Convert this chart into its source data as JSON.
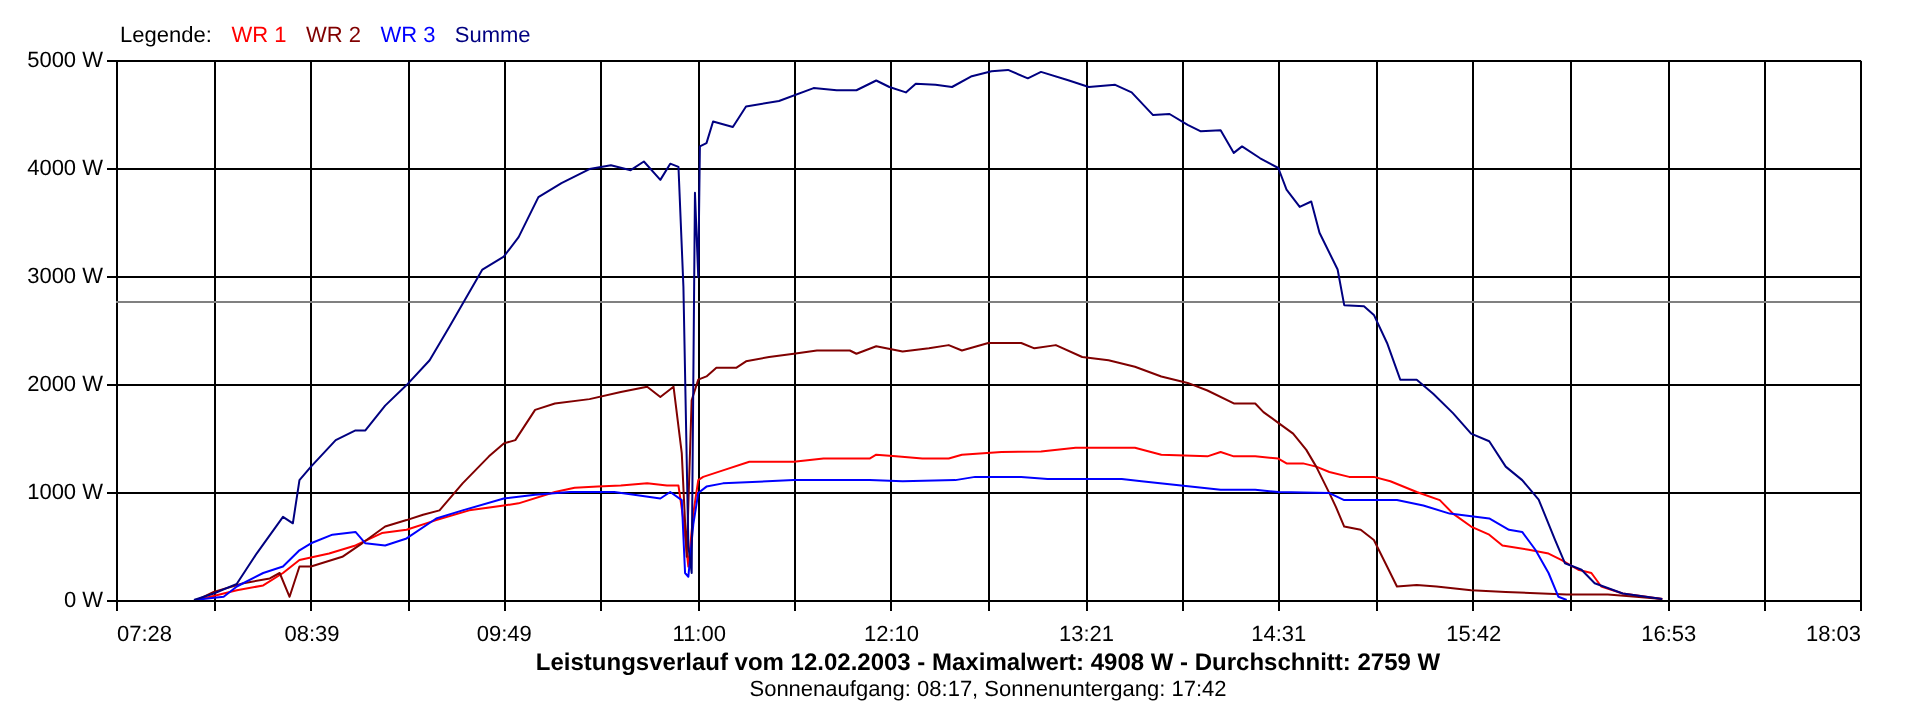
{
  "chart_data": {
    "type": "line",
    "title": "Leistungsverlauf vom 12.02.2003 - Maximalwert: 4908 W - Durchschnitt: 2759 W",
    "subtitle": "Sonnenaufgang: 08:17, Sonnenuntergang: 17:42",
    "legend_title": "Legende:",
    "legend": "top left",
    "grid": true,
    "xlim": [
      7.4667,
      18.05
    ],
    "xticks": [
      {
        "value": 7.4667,
        "label": "07:28"
      },
      {
        "value": 8.0583,
        "label": null
      },
      {
        "value": 8.65,
        "label": "08:39"
      },
      {
        "value": 9.2333,
        "label": null
      },
      {
        "value": 9.8167,
        "label": "09:49"
      },
      {
        "value": 10.4083,
        "label": null
      },
      {
        "value": 11.0,
        "label": "11:00"
      },
      {
        "value": 11.5833,
        "label": null
      },
      {
        "value": 12.1667,
        "label": "12:10"
      },
      {
        "value": 12.7583,
        "label": null
      },
      {
        "value": 13.35,
        "label": "13:21"
      },
      {
        "value": 13.9333,
        "label": null
      },
      {
        "value": 14.5167,
        "label": "14:31"
      },
      {
        "value": 15.1083,
        "label": null
      },
      {
        "value": 15.7,
        "label": "15:42"
      },
      {
        "value": 16.2917,
        "label": null
      },
      {
        "value": 16.8833,
        "label": "16:53"
      },
      {
        "value": 17.4667,
        "label": null
      },
      {
        "value": 18.05,
        "label": "18:03"
      }
    ],
    "ylim": [
      0,
      5000
    ],
    "yticks": [
      {
        "value": 0,
        "label": "0 W"
      },
      {
        "value": 1000,
        "label": "1000 W"
      },
      {
        "value": 2000,
        "label": "2000 W"
      },
      {
        "value": 3000,
        "label": "3000 W"
      },
      {
        "value": 4000,
        "label": "4000 W"
      },
      {
        "value": 5000,
        "label": "5000 W"
      }
    ],
    "ref_lines": [
      {
        "axis": "y",
        "value": 2759,
        "color": "#808080"
      }
    ],
    "series": [
      {
        "name": "WR 1",
        "color": "#ff0000",
        "x": [
          7.96,
          8.2,
          8.36,
          8.48,
          8.58,
          8.76,
          8.92,
          9.08,
          9.23,
          9.41,
          9.61,
          9.82,
          9.91,
          10.13,
          10.25,
          10.39,
          10.53,
          10.69,
          10.81,
          10.88,
          10.91,
          10.94,
          10.97,
          11.0,
          11.03,
          11.15,
          11.31,
          11.58,
          11.76,
          12.04,
          12.08,
          12.2,
          12.36,
          12.52,
          12.6,
          12.84,
          13.08,
          13.29,
          13.65,
          13.81,
          14.09,
          14.17,
          14.25,
          14.38,
          14.52,
          14.57,
          14.67,
          14.75,
          14.83,
          14.95,
          15.1,
          15.2,
          15.36,
          15.5,
          15.58,
          15.69,
          15.8,
          15.88,
          16.04,
          16.16,
          16.24,
          16.34,
          16.42,
          16.48,
          16.61,
          16.85
        ],
        "values": [
          0,
          90,
          135,
          250,
          370,
          430,
          505,
          620,
          650,
          740,
          830,
          875,
          895,
          1000,
          1040,
          1050,
          1060,
          1080,
          1060,
          1060,
          740,
          310,
          800,
          1110,
          1140,
          1200,
          1280,
          1280,
          1310,
          1310,
          1345,
          1330,
          1310,
          1310,
          1345,
          1370,
          1375,
          1410,
          1410,
          1345,
          1330,
          1370,
          1330,
          1330,
          1310,
          1265,
          1265,
          1235,
          1185,
          1140,
          1140,
          1100,
          1000,
          925,
          800,
          680,
          605,
          505,
          465,
          430,
          370,
          280,
          250,
          125,
          60,
          10
        ]
      },
      {
        "name": "WR 2",
        "color": "#800000",
        "x": [
          7.96,
          8.06,
          8.24,
          8.4,
          8.46,
          8.52,
          8.58,
          8.65,
          8.84,
          8.96,
          9.1,
          9.23,
          9.33,
          9.43,
          9.57,
          9.73,
          9.82,
          9.89,
          10.01,
          10.13,
          10.34,
          10.53,
          10.69,
          10.77,
          10.85,
          10.9,
          10.93,
          10.96,
          11.0,
          11.05,
          11.11,
          11.23,
          11.29,
          11.43,
          11.58,
          11.72,
          11.92,
          11.96,
          12.08,
          12.24,
          12.4,
          12.52,
          12.6,
          12.76,
          12.96,
          13.04,
          13.17,
          13.33,
          13.49,
          13.65,
          13.81,
          13.97,
          14.09,
          14.25,
          14.38,
          14.43,
          14.52,
          14.61,
          14.69,
          14.75,
          14.83,
          14.87,
          14.92,
          15.02,
          15.1,
          15.18,
          15.24,
          15.36,
          15.48,
          15.69,
          15.9,
          16.27,
          16.52,
          16.69,
          16.85
        ],
        "values": [
          0,
          75,
          155,
          200,
          250,
          30,
          310,
          310,
          400,
          525,
          680,
          740,
          790,
          830,
          1080,
          1330,
          1450,
          1480,
          1760,
          1820,
          1860,
          1925,
          1975,
          1880,
          1975,
          1360,
          400,
          1850,
          2040,
          2070,
          2150,
          2150,
          2210,
          2250,
          2280,
          2310,
          2310,
          2280,
          2350,
          2300,
          2330,
          2360,
          2310,
          2380,
          2380,
          2330,
          2360,
          2250,
          2220,
          2160,
          2070,
          2010,
          1940,
          1820,
          1820,
          1740,
          1640,
          1540,
          1390,
          1235,
          990,
          860,
          680,
          650,
          555,
          310,
          125,
          140,
          125,
          90,
          75,
          50,
          50,
          30,
          10
        ]
      },
      {
        "name": "WR 3",
        "color": "#0000ff",
        "x": [
          7.94,
          8.12,
          8.2,
          8.36,
          8.48,
          8.58,
          8.65,
          8.78,
          8.92,
          8.98,
          9.1,
          9.23,
          9.41,
          9.57,
          9.82,
          10.01,
          10.22,
          10.49,
          10.61,
          10.77,
          10.83,
          10.9,
          10.92,
          10.94,
          10.97,
          11.0,
          11.05,
          11.15,
          11.58,
          12.04,
          12.24,
          12.56,
          12.68,
          12.96,
          13.12,
          13.57,
          13.69,
          13.93,
          14.17,
          14.38,
          14.52,
          14.83,
          14.92,
          15.24,
          15.4,
          15.56,
          15.8,
          15.92,
          16.0,
          16.08,
          16.16,
          16.22,
          16.27
        ],
        "values": [
          0,
          30,
          125,
          250,
          310,
          460,
          525,
          605,
          630,
          525,
          505,
          570,
          755,
          830,
          940,
          975,
          1000,
          1000,
          975,
          940,
          1000,
          925,
          250,
          215,
          700,
          990,
          1050,
          1080,
          1110,
          1110,
          1100,
          1110,
          1140,
          1140,
          1120,
          1120,
          1100,
          1060,
          1020,
          1020,
          1000,
          990,
          925,
          925,
          875,
          800,
          755,
          650,
          630,
          465,
          250,
          30,
          0
        ]
      },
      {
        "name": "Summe",
        "color": "#000080",
        "x": [
          7.94,
          8.06,
          8.2,
          8.32,
          8.48,
          8.54,
          8.58,
          8.65,
          8.8,
          8.92,
          8.98,
          9.1,
          9.23,
          9.37,
          9.49,
          9.69,
          9.82,
          9.91,
          10.03,
          10.17,
          10.34,
          10.47,
          10.59,
          10.67,
          10.77,
          10.83,
          10.88,
          10.91,
          10.94,
          10.96,
          10.98,
          11.0,
          11.01,
          11.05,
          11.09,
          11.21,
          11.29,
          11.49,
          11.7,
          11.84,
          11.96,
          12.08,
          12.16,
          12.26,
          12.32,
          12.44,
          12.54,
          12.66,
          12.78,
          12.88,
          13.0,
          13.08,
          13.25,
          13.37,
          13.53,
          13.63,
          13.76,
          13.86,
          13.97,
          14.05,
          14.17,
          14.25,
          14.3,
          14.41,
          14.52,
          14.57,
          14.65,
          14.72,
          14.77,
          14.88,
          14.92,
          15.04,
          15.1,
          15.18,
          15.26,
          15.36,
          15.46,
          15.58,
          15.69,
          15.8,
          15.9,
          16.0,
          16.1,
          16.2,
          16.26,
          16.36,
          16.44,
          16.61,
          16.85
        ],
        "values": [
          0,
          60,
          150,
          430,
          770,
          710,
          1110,
          1235,
          1480,
          1570,
          1570,
          1800,
          1990,
          2220,
          2530,
          3060,
          3180,
          3360,
          3730,
          3860,
          3990,
          4025,
          3980,
          4060,
          3890,
          4040,
          4010,
          2900,
          500,
          250,
          3770,
          2990,
          4200,
          4230,
          4430,
          4380,
          4570,
          4620,
          4740,
          4720,
          4720,
          4810,
          4750,
          4700,
          4780,
          4770,
          4750,
          4850,
          4895,
          4908,
          4830,
          4890,
          4810,
          4750,
          4770,
          4700,
          4490,
          4500,
          4400,
          4340,
          4350,
          4140,
          4200,
          4090,
          4000,
          3800,
          3640,
          3690,
          3400,
          3060,
          2730,
          2720,
          2640,
          2380,
          2040,
          2040,
          1910,
          1730,
          1540,
          1470,
          1235,
          1110,
          930,
          555,
          340,
          280,
          155,
          60,
          10
        ]
      }
    ]
  }
}
